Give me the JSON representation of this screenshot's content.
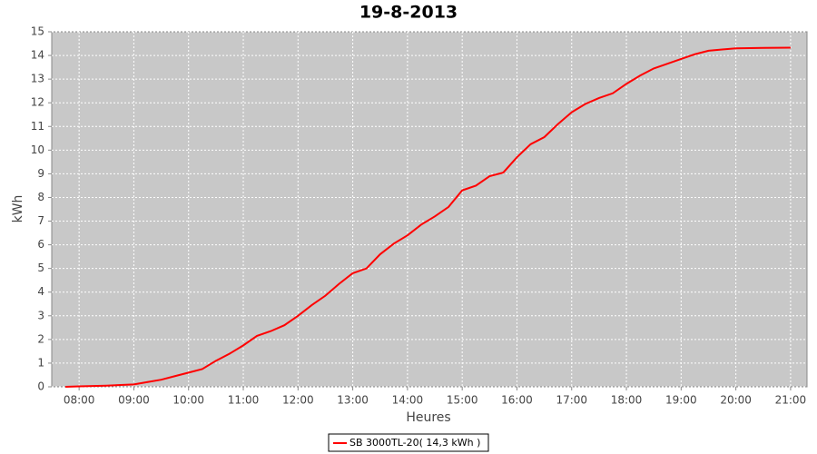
{
  "chart_data": {
    "type": "line",
    "title": "19-8-2013",
    "xlabel": "Heures",
    "ylabel": "kWh",
    "x": [
      "07:45",
      "08:00",
      "08:30",
      "09:00",
      "09:15",
      "09:30",
      "09:45",
      "10:00",
      "10:15",
      "10:30",
      "10:45",
      "11:00",
      "11:15",
      "11:30",
      "11:45",
      "12:00",
      "12:15",
      "12:30",
      "12:45",
      "13:00",
      "13:15",
      "13:30",
      "13:45",
      "14:00",
      "14:15",
      "14:30",
      "14:45",
      "15:00",
      "15:15",
      "15:30",
      "15:45",
      "16:00",
      "16:15",
      "16:30",
      "16:45",
      "17:00",
      "17:15",
      "17:30",
      "17:45",
      "18:00",
      "18:15",
      "18:30",
      "18:45",
      "19:00",
      "19:15",
      "19:30",
      "19:45",
      "20:00",
      "20:30",
      "21:00"
    ],
    "series": [
      {
        "name": "SB 3000TL-20( 14,3 kWh )",
        "color": "#ff0000",
        "values": [
          0,
          0.02,
          0.05,
          0.1,
          0.2,
          0.3,
          0.45,
          0.6,
          0.75,
          1.1,
          1.4,
          1.75,
          2.15,
          2.35,
          2.6,
          3.0,
          3.45,
          3.85,
          4.35,
          4.8,
          5.0,
          5.6,
          6.05,
          6.4,
          6.85,
          7.2,
          7.6,
          8.3,
          8.5,
          8.9,
          9.05,
          9.7,
          10.25,
          10.55,
          11.1,
          11.6,
          11.95,
          12.2,
          12.4,
          12.8,
          13.15,
          13.45,
          13.65,
          13.85,
          14.05,
          14.2,
          14.25,
          14.3,
          14.32,
          14.33
        ]
      }
    ],
    "xlim": [
      "07:30",
      "21:18"
    ],
    "xticks": [
      "08:00",
      "09:00",
      "10:00",
      "11:00",
      "12:00",
      "13:00",
      "14:00",
      "15:00",
      "16:00",
      "17:00",
      "18:00",
      "19:00",
      "20:00",
      "21:00"
    ],
    "ylim": [
      0,
      15
    ],
    "yticks": [
      0,
      1,
      2,
      3,
      4,
      5,
      6,
      7,
      8,
      9,
      10,
      11,
      12,
      13,
      14,
      15
    ],
    "grid": true,
    "legend": "bottom",
    "plot_background": "#c8c8c8"
  }
}
